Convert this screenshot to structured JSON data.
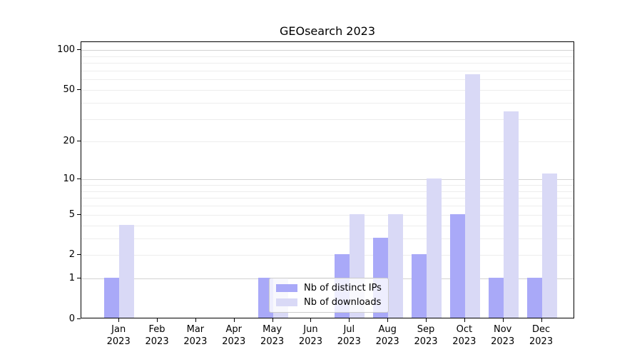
{
  "chart_data": {
    "type": "bar",
    "title": "GEOsearch 2023",
    "categories": [
      "Jan 2023",
      "Feb 2023",
      "Mar 2023",
      "Apr 2023",
      "May 2023",
      "Jun 2023",
      "Jul 2023",
      "Aug 2023",
      "Sep 2023",
      "Oct 2023",
      "Nov 2023",
      "Dec 2023"
    ],
    "series": [
      {
        "name": "Nb of distinct IPs",
        "color": "#a9a9f8",
        "values": [
          1,
          0,
          0,
          0,
          1,
          0,
          2,
          3,
          2,
          5,
          1,
          1
        ]
      },
      {
        "name": "Nb of downloads",
        "color": "#d9d9f6",
        "values": [
          4,
          0,
          0,
          0,
          1,
          0,
          5,
          5,
          10,
          65,
          34,
          11
        ]
      }
    ],
    "xlabel": "",
    "ylabel": "",
    "yscale": "log1p",
    "ylim": [
      0,
      114
    ],
    "ytick_values": [
      0,
      1,
      2,
      5,
      10,
      20,
      50,
      100
    ],
    "gridlines": {
      "major": [
        1,
        10,
        100
      ],
      "minor": [
        2,
        3,
        4,
        5,
        6,
        7,
        8,
        9,
        20,
        30,
        40,
        50,
        60,
        70,
        80,
        90
      ],
      "major_color": "#d3d3d3",
      "minor_color": "#ededed"
    },
    "legend_position": "lower center",
    "axis_color": "#000000",
    "background_color": "#ffffff"
  }
}
